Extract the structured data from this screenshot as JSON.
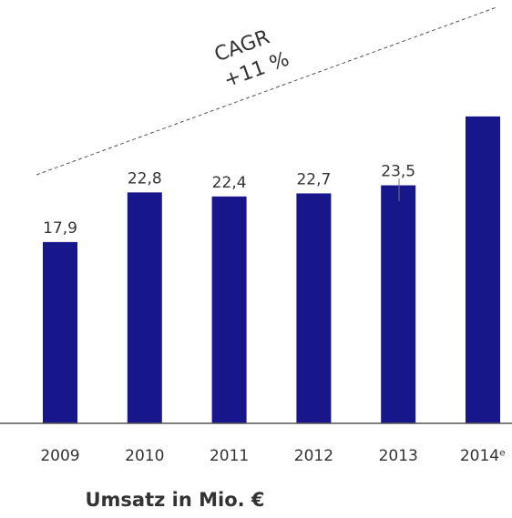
{
  "chart_data": {
    "type": "bar",
    "title": "Umsatz in Mio. €",
    "categories": [
      "2009",
      "2010",
      "2011",
      "2012",
      "2013",
      "2014ᵉ"
    ],
    "values": [
      17.9,
      22.8,
      22.4,
      22.7,
      23.5,
      30.3
    ],
    "value_labels": [
      "17,9",
      "22,8",
      "22,4",
      "22,7",
      "23,5",
      null
    ],
    "color": "#17168a",
    "ylim": [
      0,
      40
    ],
    "annotations": [
      "CAGR",
      "+11 %"
    ]
  }
}
